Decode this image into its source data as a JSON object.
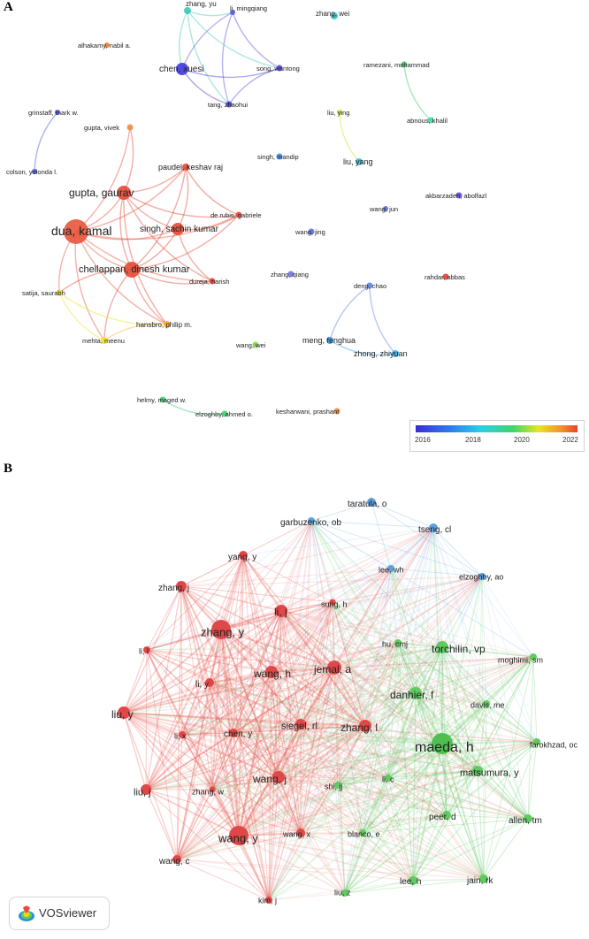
{
  "panel_a": {
    "label": "A",
    "colorbar": {
      "ticks": [
        "2016",
        "2018",
        "2020",
        "2022"
      ]
    },
    "nodes": [
      {
        "id": "zhang_yu",
        "label": "zhang, yu",
        "color": "#3ec9b8",
        "size": 4
      },
      {
        "id": "li_mingqiang",
        "label": "li, mingqiang",
        "color": "#5a57e0",
        "size": 3
      },
      {
        "id": "zhang_wei",
        "label": "zhang, wei",
        "color": "#37c5c8",
        "size": 4
      },
      {
        "id": "alhakamy",
        "label": "alhakamy, nabil a.",
        "color": "#f07a2e",
        "size": 3
      },
      {
        "id": "chen_xuesi",
        "label": "chen, xuesi",
        "color": "#4338dd",
        "size": 7
      },
      {
        "id": "song_wantong",
        "label": "song, wantong",
        "color": "#4f48de",
        "size": 3.5
      },
      {
        "id": "ramezani",
        "label": "ramezani, mohammad",
        "color": "#3fcf6c",
        "size": 3.5
      },
      {
        "id": "tang_zhaohui",
        "label": "tang, zhaohui",
        "color": "#4d45de",
        "size": 3.5
      },
      {
        "id": "grinstaff",
        "label": "grinstaff, mark w.",
        "color": "#4750e0",
        "size": 3
      },
      {
        "id": "liu_ying",
        "label": "liu, ying",
        "color": "#cfe12a",
        "size": 3
      },
      {
        "id": "abnous",
        "label": "abnous, khalil",
        "color": "#45d4a8",
        "size": 3.5
      },
      {
        "id": "gupta_vivek",
        "label": "gupta, vivek",
        "color": "#f08c3a",
        "size": 3.5
      },
      {
        "id": "colson",
        "label": "colson, yolonda l.",
        "color": "#4d5ee2",
        "size": 3
      },
      {
        "id": "singh_mandip",
        "label": "singh, mandip",
        "color": "#3a8be8",
        "size": 3.5
      },
      {
        "id": "liu_yang",
        "label": "liu, yang",
        "color": "#3ab9e0",
        "size": 4
      },
      {
        "id": "paudel",
        "label": "paudel, keshav raj",
        "color": "#e24a36",
        "size": 4
      },
      {
        "id": "gupta_gaurav",
        "label": "gupta, gaurav",
        "color": "#e24a36",
        "size": 8
      },
      {
        "id": "akbarzadeh",
        "label": "akbarzadeh, abolfazl",
        "color": "#5a4ee0",
        "size": 3.5
      },
      {
        "id": "derubis",
        "label": "de rubis, gabriele",
        "color": "#e24a36",
        "size": 3.5
      },
      {
        "id": "wang_jun",
        "label": "wang, jun",
        "color": "#4f68e4",
        "size": 3
      },
      {
        "id": "singh_sachin",
        "label": "singh, sachin kumar",
        "color": "#e24a36",
        "size": 7
      },
      {
        "id": "dua_kamal",
        "label": "dua, kamal",
        "color": "#e8553c",
        "size": 14
      },
      {
        "id": "wang_jing",
        "label": "wang, jing",
        "color": "#5a70e4",
        "size": 3.5
      },
      {
        "id": "chellappan",
        "label": "chellappan, dinesh kumar",
        "color": "#e24a36",
        "size": 9
      },
      {
        "id": "dureja",
        "label": "dureja, harish",
        "color": "#e24a36",
        "size": 3.5
      },
      {
        "id": "zhang_qiang",
        "label": "zhang, qiang",
        "color": "#6b74e6",
        "size": 3.5
      },
      {
        "id": "rahdar",
        "label": "rahdar, abbas",
        "color": "#e03e35",
        "size": 3.5
      },
      {
        "id": "satija",
        "label": "satija, saurabh",
        "color": "#f0e22a",
        "size": 3.5
      },
      {
        "id": "deng_chao",
        "label": "deng, chao",
        "color": "#5b84e8",
        "size": 3.5
      },
      {
        "id": "hansbro",
        "label": "hansbro, philip m.",
        "color": "#f5b13a",
        "size": 4
      },
      {
        "id": "meng_fenghua",
        "label": "meng, fenghua",
        "color": "#3a9be8",
        "size": 4
      },
      {
        "id": "mehta_meenu",
        "label": "mehta, meenu",
        "color": "#f0e22a",
        "size": 4
      },
      {
        "id": "wang_wei",
        "label": "wang, wei",
        "color": "#7fd04a",
        "size": 3.5
      },
      {
        "id": "zhong_zhiyuan",
        "label": "zhong, zhiyuan",
        "color": "#3ab0e4",
        "size": 4
      },
      {
        "id": "helmy",
        "label": "helmy, maged w.",
        "color": "#3fcf6c",
        "size": 3.5
      },
      {
        "id": "elzoghby_a",
        "label": "elzoghby, ahmed o.",
        "color": "#3fcf6c",
        "size": 3.5
      },
      {
        "id": "kesharwani",
        "label": "kesharwani, prashant",
        "color": "#f08c3a",
        "size": 3.5
      }
    ],
    "edges": [
      [
        "zhang_yu",
        "chen_xuesi"
      ],
      [
        "zhang_yu",
        "tang_zhaohui"
      ],
      [
        "li_mingqiang",
        "chen_xuesi"
      ],
      [
        "li_mingqiang",
        "song_wantong"
      ],
      [
        "li_mingqiang",
        "tang_zhaohui"
      ],
      [
        "chen_xuesi",
        "song_wantong"
      ],
      [
        "chen_xuesi",
        "tang_zhaohui"
      ],
      [
        "song_wantong",
        "tang_zhaohui"
      ],
      [
        "zhang_yu",
        "li_mingqiang"
      ],
      [
        "zhang_yu",
        "song_wantong"
      ],
      [
        "grinstaff",
        "colson"
      ],
      [
        "ramezani",
        "abnous"
      ],
      [
        "liu_ying",
        "liu_yang"
      ],
      [
        "dua_kamal",
        "gupta_gaurav"
      ],
      [
        "dua_kamal",
        "chellappan"
      ],
      [
        "dua_kamal",
        "singh_sachin"
      ],
      [
        "dua_kamal",
        "paudel"
      ],
      [
        "dua_kamal",
        "derubis"
      ],
      [
        "dua_kamal",
        "dureja"
      ],
      [
        "dua_kamal",
        "hansbro"
      ],
      [
        "dua_kamal",
        "satija"
      ],
      [
        "dua_kamal",
        "mehta_meenu"
      ],
      [
        "dua_kamal",
        "gupta_vivek"
      ],
      [
        "gupta_gaurav",
        "chellappan"
      ],
      [
        "gupta_gaurav",
        "singh_sachin"
      ],
      [
        "gupta_gaurav",
        "paudel"
      ],
      [
        "gupta_gaurav",
        "derubis"
      ],
      [
        "gupta_gaurav",
        "dureja"
      ],
      [
        "gupta_gaurav",
        "hansbro"
      ],
      [
        "gupta_gaurav",
        "gupta_vivek"
      ],
      [
        "chellappan",
        "singh_sachin"
      ],
      [
        "chellappan",
        "paudel"
      ],
      [
        "chellappan",
        "derubis"
      ],
      [
        "chellappan",
        "dureja"
      ],
      [
        "chellappan",
        "hansbro"
      ],
      [
        "chellappan",
        "satija"
      ],
      [
        "chellappan",
        "mehta_meenu"
      ],
      [
        "singh_sachin",
        "paudel"
      ],
      [
        "singh_sachin",
        "derubis"
      ],
      [
        "singh_sachin",
        "dureja"
      ],
      [
        "paudel",
        "derubis"
      ],
      [
        "hansbro",
        "mehta_meenu"
      ],
      [
        "satija",
        "mehta_meenu"
      ],
      [
        "satija",
        "hansbro"
      ],
      [
        "deng_chao",
        "meng_fenghua"
      ],
      [
        "deng_chao",
        "zhong_zhiyuan"
      ],
      [
        "meng_fenghua",
        "zhong_zhiyuan"
      ],
      [
        "helmy",
        "elzoghby_a"
      ]
    ]
  },
  "panel_b": {
    "label": "B",
    "badge": {
      "text": "VOSviewer",
      "icon": "vosviewer-logo-icon"
    },
    "nodes": [
      {
        "id": "taratula",
        "label": "taratula, o",
        "color": "#5ba0dc",
        "size": 5,
        "fs": 10,
        "c": "b"
      },
      {
        "id": "garbuzenko",
        "label": "garbuzenko, ob",
        "color": "#5ba0dc",
        "size": 4,
        "fs": 10,
        "c": "b"
      },
      {
        "id": "tseng",
        "label": "tseng, cl",
        "color": "#5ba0dc",
        "size": 5,
        "fs": 10,
        "c": "b"
      },
      {
        "id": "yang_y",
        "label": "yang, y",
        "color": "#e04848",
        "size": 5,
        "fs": 10,
        "c": "r"
      },
      {
        "id": "lee_wh",
        "label": "lee, wh",
        "color": "#5ba0dc",
        "size": 4,
        "fs": 9,
        "c": "b"
      },
      {
        "id": "elzoghby_ao",
        "label": "elzoghby, ao",
        "color": "#5ba0dc",
        "size": 4,
        "fs": 9,
        "c": "b"
      },
      {
        "id": "zhang_j",
        "label": "zhang, j",
        "color": "#e04848",
        "size": 6,
        "fs": 10,
        "c": "r"
      },
      {
        "id": "sung_h",
        "label": "sung, h",
        "color": "#e04848",
        "size": 3.5,
        "fs": 9,
        "c": "r"
      },
      {
        "id": "li_j",
        "label": "li, j",
        "color": "#e04848",
        "size": 7,
        "fs": 12,
        "c": "r"
      },
      {
        "id": "zhang_y",
        "label": "zhang, y",
        "color": "#e04848",
        "size": 11,
        "fs": 13,
        "c": "r"
      },
      {
        "id": "hu_cmj",
        "label": "hu, cmj",
        "color": "#5fca5f",
        "size": 4,
        "fs": 9,
        "c": "g"
      },
      {
        "id": "torchilin",
        "label": "torchilin, vp",
        "color": "#5fca5f",
        "size": 7,
        "fs": 12,
        "c": "g"
      },
      {
        "id": "li_l",
        "label": "li, l",
        "color": "#e04848",
        "size": 4,
        "fs": 9,
        "c": "r"
      },
      {
        "id": "moghimi",
        "label": "moghimi, sm",
        "color": "#5fca5f",
        "size": 4,
        "fs": 9,
        "c": "g"
      },
      {
        "id": "jemal",
        "label": "jemal, a",
        "color": "#e04848",
        "size": 8,
        "fs": 12,
        "c": "r"
      },
      {
        "id": "wang_h",
        "label": "wang, h",
        "color": "#e04848",
        "size": 7,
        "fs": 12,
        "c": "r"
      },
      {
        "id": "li_y",
        "label": "li, y",
        "color": "#e04848",
        "size": 5,
        "fs": 10,
        "c": "r"
      },
      {
        "id": "danhier",
        "label": "danhier, f",
        "color": "#5fca5f",
        "size": 7,
        "fs": 12,
        "c": "g"
      },
      {
        "id": "davis",
        "label": "davis, me",
        "color": "#5fca5f",
        "size": 4,
        "fs": 9,
        "c": "g"
      },
      {
        "id": "liu_y",
        "label": "liu, y",
        "color": "#e04848",
        "size": 7,
        "fs": 12,
        "c": "r"
      },
      {
        "id": "siegel",
        "label": "siegel, rl",
        "color": "#e04848",
        "size": 6,
        "fs": 11,
        "c": "r"
      },
      {
        "id": "zhang_l",
        "label": "zhang, l",
        "color": "#e04848",
        "size": 7,
        "fs": 12,
        "c": "r"
      },
      {
        "id": "maeda",
        "label": "maeda, h",
        "color": "#4fc04f",
        "size": 12,
        "fs": 16,
        "c": "g"
      },
      {
        "id": "farokhzad",
        "label": "farokhzad, oc",
        "color": "#5fca5f",
        "size": 4,
        "fs": 9,
        "c": "g"
      },
      {
        "id": "li_x",
        "label": "li, x",
        "color": "#e04848",
        "size": 4,
        "fs": 9,
        "c": "r"
      },
      {
        "id": "chen_y",
        "label": "chen, y",
        "color": "#e04848",
        "size": 5,
        "fs": 10,
        "c": "r"
      },
      {
        "id": "matsumura",
        "label": "matsumura, y",
        "color": "#5fca5f",
        "size": 6,
        "fs": 11,
        "c": "g"
      },
      {
        "id": "liu_j",
        "label": "liu, j",
        "color": "#e04848",
        "size": 6,
        "fs": 11,
        "c": "r"
      },
      {
        "id": "wang_j",
        "label": "wang, j",
        "color": "#e04848",
        "size": 7,
        "fs": 12,
        "c": "r"
      },
      {
        "id": "shi_jj",
        "label": "shi, jj",
        "color": "#5fca5f",
        "size": 4,
        "fs": 9,
        "c": "g"
      },
      {
        "id": "li_c",
        "label": "li, c",
        "color": "#5fca5f",
        "size": 4,
        "fs": 9,
        "c": "g"
      },
      {
        "id": "zhang_w",
        "label": "zhang, w",
        "color": "#e04848",
        "size": 3.5,
        "fs": 9,
        "c": "r"
      },
      {
        "id": "peer",
        "label": "peer, d",
        "color": "#5fca5f",
        "size": 5,
        "fs": 10,
        "c": "g"
      },
      {
        "id": "allen",
        "label": "allen, tm",
        "color": "#5fca5f",
        "size": 5,
        "fs": 10,
        "c": "g"
      },
      {
        "id": "wang_y",
        "label": "wang, y",
        "color": "#e04848",
        "size": 11,
        "fs": 13,
        "c": "r"
      },
      {
        "id": "wang_x",
        "label": "wang, x",
        "color": "#e04848",
        "size": 5,
        "fs": 9,
        "c": "r"
      },
      {
        "id": "blanco",
        "label": "blanco, e",
        "color": "#5fca5f",
        "size": 4,
        "fs": 9,
        "c": "g"
      },
      {
        "id": "wang_c",
        "label": "wang, c",
        "color": "#e04848",
        "size": 5,
        "fs": 10,
        "c": "r"
      },
      {
        "id": "lee_h",
        "label": "lee, h",
        "color": "#5fca5f",
        "size": 5,
        "fs": 10,
        "c": "g"
      },
      {
        "id": "jain",
        "label": "jain, rk",
        "color": "#5fca5f",
        "size": 5,
        "fs": 10,
        "c": "g"
      },
      {
        "id": "kim_j",
        "label": "kim, j",
        "color": "#e04848",
        "size": 4,
        "fs": 9,
        "c": "r"
      },
      {
        "id": "liu_z",
        "label": "liu, z",
        "color": "#5fca5f",
        "size": 4,
        "fs": 9,
        "c": "g"
      }
    ]
  }
}
